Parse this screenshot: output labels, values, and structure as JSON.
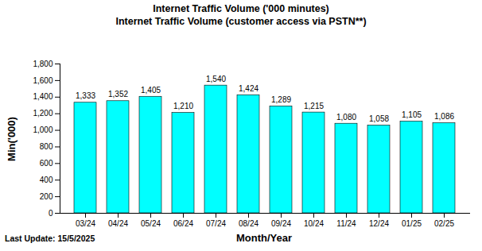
{
  "chart_data": {
    "type": "bar",
    "title": "Internet Traffic Volume ('000 minutes)",
    "subtitle": "Internet Traffic Volume (customer access via PSTN**)",
    "x_label": "Month/Year",
    "y_label": "Min('000)",
    "annotations": [
      "Last Update: 15/5/2025"
    ],
    "categories": [
      "03/24",
      "04/24",
      "05/24",
      "06/24",
      "07/24",
      "08/24",
      "09/24",
      "10/24",
      "11/24",
      "12/24",
      "01/25",
      "02/25"
    ],
    "values": [
      1333,
      1352,
      1405,
      1210,
      1540,
      1424,
      1289,
      1215,
      1080,
      1058,
      1105,
      1086
    ],
    "value_labels": [
      "1,333",
      "1,352",
      "1,405",
      "1,210",
      "1,540",
      "1,424",
      "1,289",
      "1,215",
      "1,080",
      "1,058",
      "1,105",
      "1,086"
    ],
    "data_labels": true,
    "color": "#00FFFF",
    "ylim": [
      0,
      1800
    ],
    "yticks": [
      0,
      200,
      400,
      600,
      800,
      {
        "value": 1000,
        "label": "1,000"
      },
      {
        "value": 1200,
        "label": "1,200"
      },
      {
        "value": 1400,
        "label": "1,400"
      },
      {
        "value": 1600,
        "label": "1,600"
      },
      {
        "value": 1800,
        "label": "1,800"
      }
    ],
    "grid": false
  }
}
